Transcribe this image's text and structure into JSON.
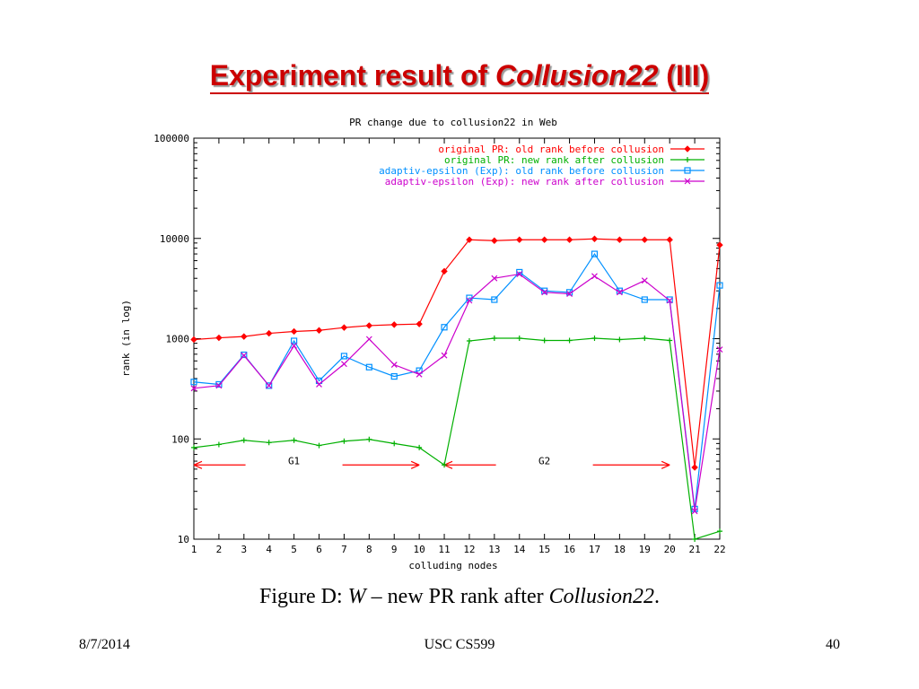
{
  "slide": {
    "title_main": "Experiment result of ",
    "title_italic": "Collusion22",
    "title_suffix": " (III)",
    "caption_prefix": "Figure D:  ",
    "caption_w": "W",
    "caption_mid": " – new PR rank after ",
    "caption_italic": "Collusion22",
    "caption_end": ".",
    "footer_date": "8/7/2014",
    "footer_course": "USC CS599",
    "footer_page": "40"
  },
  "chart_data": {
    "type": "line",
    "title": "PR change due to collusion22 in Web",
    "xlabel": "colluding nodes",
    "ylabel": "rank (in log)",
    "yscale": "log",
    "ylim": [
      10,
      100000
    ],
    "xlim": [
      1,
      22
    ],
    "x": [
      1,
      2,
      3,
      4,
      5,
      6,
      7,
      8,
      9,
      10,
      11,
      12,
      13,
      14,
      15,
      16,
      17,
      18,
      19,
      20,
      21,
      22
    ],
    "x_ticks": [
      "1",
      "2",
      "3",
      "4",
      "5",
      "6",
      "7",
      "8",
      "9",
      "10",
      "11",
      "12",
      "13",
      "14",
      "15",
      "16",
      "17",
      "18",
      "19",
      "20",
      "21",
      "22"
    ],
    "y_ticks": [
      {
        "value": 10,
        "label": "10"
      },
      {
        "value": 100,
        "label": "100"
      },
      {
        "value": 1000,
        "label": "1000"
      },
      {
        "value": 10000,
        "label": "10000"
      },
      {
        "value": 100000,
        "label": "100000"
      }
    ],
    "grid": false,
    "legend_position": "top-right",
    "series": [
      {
        "name": "original PR: old rank before collusion",
        "color": "#ff0000",
        "marker": "diamond",
        "values": [
          980,
          1020,
          1050,
          1130,
          1180,
          1210,
          1290,
          1350,
          1380,
          1400,
          4700,
          9700,
          9500,
          9700,
          9700,
          9700,
          9900,
          9700,
          9700,
          9700,
          52,
          8600
        ]
      },
      {
        "name": "original PR: new rank after collusion",
        "color": "#00b000",
        "marker": "plus",
        "values": [
          82,
          88,
          97,
          92,
          97,
          86,
          95,
          99,
          90,
          82,
          55,
          950,
          1010,
          1010,
          960,
          960,
          1010,
          980,
          1010,
          960,
          10,
          12
        ]
      },
      {
        "name": "adaptiv-epsilon (Exp): old rank before collusion",
        "color": "#0090ff",
        "marker": "square",
        "values": [
          370,
          350,
          690,
          340,
          950,
          380,
          670,
          520,
          420,
          480,
          1300,
          2550,
          2450,
          4600,
          3000,
          2900,
          7000,
          3000,
          2450,
          2450,
          20,
          3400
        ]
      },
      {
        "name": "adaptiv-epsilon (Exp): new rank after collusion",
        "color": "#cc00cc",
        "marker": "cross",
        "values": [
          320,
          340,
          680,
          340,
          850,
          350,
          560,
          990,
          550,
          440,
          680,
          2400,
          4000,
          4400,
          2900,
          2800,
          4200,
          2900,
          3800,
          2400,
          19,
          780
        ]
      }
    ],
    "annotations": [
      {
        "label": "G1",
        "x_from": 1,
        "x_to": 10,
        "y": 55
      },
      {
        "label": "G2",
        "x_from": 11,
        "x_to": 20,
        "y": 55
      }
    ]
  }
}
